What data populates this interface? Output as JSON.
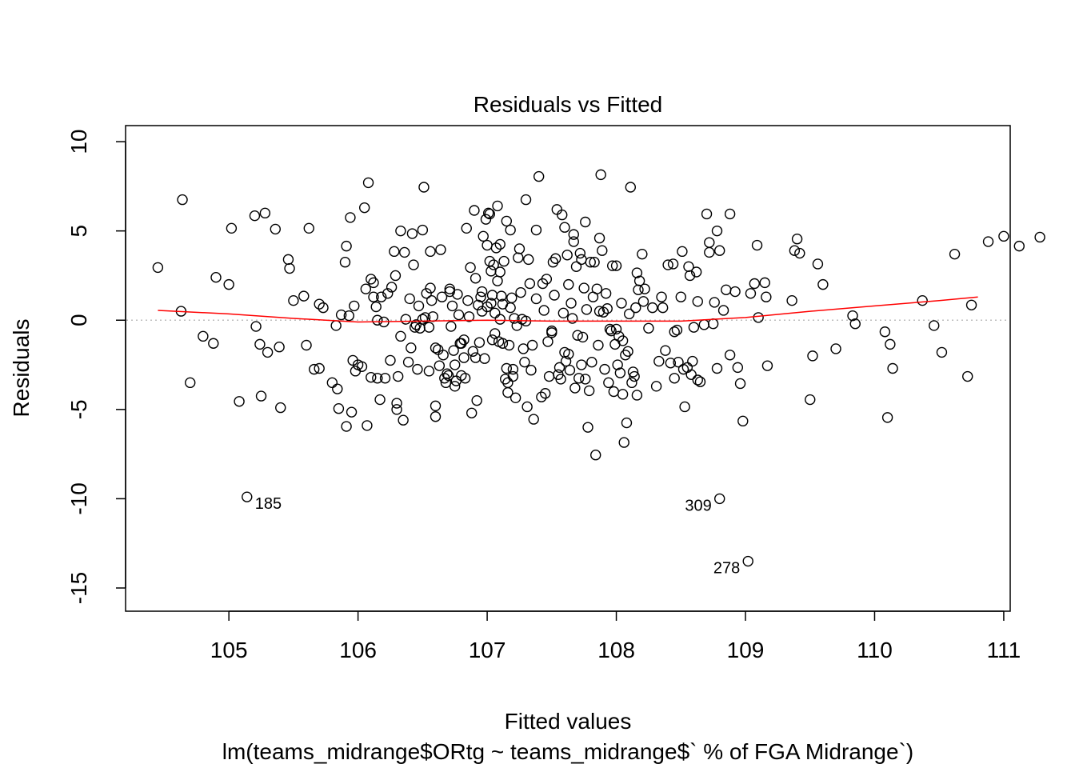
{
  "chart_data": {
    "type": "scatter",
    "title": "Residuals vs Fitted",
    "xlabel": "Fitted values",
    "ylabel": "Residuals",
    "subtitle": "lm(teams_midrange$ORtg ~ teams_midrange$` % of FGA Midrange`)",
    "xlim": [
      104.2,
      111.05
    ],
    "ylim": [
      -16.3,
      10.9
    ],
    "x_ticks": [
      105,
      106,
      107,
      108,
      109,
      110,
      111
    ],
    "x_tick_labels": [
      "105",
      "106",
      "107",
      "108",
      "109",
      "110",
      "111"
    ],
    "y_ticks": [
      -15,
      -10,
      -5,
      0,
      5,
      10
    ],
    "y_tick_labels": [
      "-15",
      "-10",
      "-5",
      "0",
      "5",
      "10"
    ],
    "grid": false,
    "reference_line": {
      "y": 0,
      "style": "dotted",
      "color": "#bebebe"
    },
    "point_color": "#000000",
    "smooth_color": "#ff0000",
    "smooth": {
      "x": [
        104.45,
        105.0,
        105.5,
        106.0,
        106.5,
        107.0,
        107.5,
        108.0,
        108.5,
        109.0,
        109.5,
        110.0,
        110.5,
        110.8
      ],
      "y": [
        0.55,
        0.35,
        0.1,
        -0.1,
        -0.05,
        0.0,
        -0.05,
        -0.05,
        -0.05,
        0.15,
        0.5,
        0.8,
        1.1,
        1.3
      ]
    },
    "labeled_points": [
      {
        "x": 105.14,
        "y": -9.9,
        "label": "185",
        "side": "right"
      },
      {
        "x": 108.8,
        "y": -10.0,
        "label": "309",
        "side": "left"
      },
      {
        "x": 109.02,
        "y": -13.5,
        "label": "278",
        "side": "left"
      }
    ],
    "points": [
      [
        104.45,
        2.95
      ],
      [
        104.63,
        0.5
      ],
      [
        104.64,
        6.75
      ],
      [
        104.7,
        -3.5
      ],
      [
        104.8,
        -0.9
      ],
      [
        104.88,
        -1.3
      ],
      [
        104.9,
        2.4
      ],
      [
        105.0,
        2.0
      ],
      [
        105.02,
        5.15
      ],
      [
        105.08,
        -4.55
      ],
      [
        105.2,
        5.85
      ],
      [
        105.21,
        -0.35
      ],
      [
        105.24,
        -1.35
      ],
      [
        105.25,
        -4.25
      ],
      [
        105.28,
        6.0
      ],
      [
        105.3,
        -1.8
      ],
      [
        105.36,
        5.1
      ],
      [
        105.39,
        -1.5
      ],
      [
        105.4,
        -4.9
      ],
      [
        105.46,
        3.4
      ],
      [
        105.47,
        2.9
      ],
      [
        105.5,
        1.1
      ],
      [
        105.58,
        1.35
      ],
      [
        105.6,
        -1.4
      ],
      [
        105.62,
        5.15
      ],
      [
        105.66,
        -2.75
      ],
      [
        105.7,
        -2.7
      ],
      [
        105.7,
        0.9
      ],
      [
        105.73,
        0.7
      ],
      [
        105.8,
        -3.5
      ],
      [
        105.83,
        -0.3
      ],
      [
        105.84,
        -3.85
      ],
      [
        105.85,
        -4.95
      ],
      [
        105.87,
        0.3
      ],
      [
        105.9,
        3.25
      ],
      [
        105.91,
        4.15
      ],
      [
        105.91,
        -5.95
      ],
      [
        105.93,
        0.25
      ],
      [
        105.94,
        5.75
      ],
      [
        105.95,
        -5.15
      ],
      [
        105.96,
        -2.25
      ],
      [
        105.97,
        0.8
      ],
      [
        105.98,
        -2.85
      ],
      [
        106.0,
        -2.5
      ],
      [
        106.03,
        -2.6
      ],
      [
        106.05,
        6.3
      ],
      [
        106.06,
        1.75
      ],
      [
        106.07,
        -5.9
      ],
      [
        106.08,
        7.7
      ],
      [
        106.1,
        2.3
      ],
      [
        106.1,
        -3.2
      ],
      [
        106.12,
        2.1
      ],
      [
        106.12,
        1.3
      ],
      [
        106.14,
        0.75
      ],
      [
        106.15,
        0.0
      ],
      [
        106.15,
        -3.25
      ],
      [
        106.17,
        -4.45
      ],
      [
        106.18,
        1.3
      ],
      [
        106.2,
        -0.1
      ],
      [
        106.21,
        -3.25
      ],
      [
        106.23,
        1.5
      ],
      [
        106.25,
        -2.25
      ],
      [
        106.26,
        1.85
      ],
      [
        106.28,
        3.85
      ],
      [
        106.29,
        2.5
      ],
      [
        106.3,
        -4.65
      ],
      [
        106.3,
        -5.0
      ],
      [
        106.31,
        -3.15
      ],
      [
        106.33,
        5.0
      ],
      [
        106.33,
        -0.9
      ],
      [
        106.35,
        -5.6
      ],
      [
        106.36,
        3.8
      ],
      [
        106.37,
        0.05
      ],
      [
        106.39,
        -2.35
      ],
      [
        106.4,
        1.2
      ],
      [
        106.41,
        -1.55
      ],
      [
        106.42,
        4.85
      ],
      [
        106.43,
        3.1
      ],
      [
        106.44,
        -0.4
      ],
      [
        106.45,
        -0.25
      ],
      [
        106.46,
        -2.75
      ],
      [
        106.47,
        0.8
      ],
      [
        106.48,
        -0.45
      ],
      [
        106.5,
        0.05
      ],
      [
        106.5,
        5.05
      ],
      [
        106.51,
        7.45
      ],
      [
        106.52,
        0.15
      ],
      [
        106.53,
        1.5
      ],
      [
        106.55,
        -2.85
      ],
      [
        106.55,
        -0.4
      ],
      [
        106.56,
        3.85
      ],
      [
        106.56,
        1.8
      ],
      [
        106.57,
        1.1
      ],
      [
        106.58,
        0.2
      ],
      [
        106.6,
        -1.55
      ],
      [
        106.6,
        -4.8
      ],
      [
        106.6,
        -5.4
      ],
      [
        106.62,
        -1.65
      ],
      [
        106.63,
        -2.55
      ],
      [
        106.64,
        3.95
      ],
      [
        106.65,
        1.3
      ],
      [
        106.66,
        -1.95
      ],
      [
        106.67,
        -3.25
      ],
      [
        106.68,
        -3.5
      ],
      [
        106.69,
        -3.0
      ],
      [
        106.7,
        -3.1
      ],
      [
        106.71,
        1.6
      ],
      [
        106.71,
        1.75
      ],
      [
        106.72,
        -0.35
      ],
      [
        106.73,
        0.8
      ],
      [
        106.74,
        -1.7
      ],
      [
        106.75,
        -2.5
      ],
      [
        106.75,
        -3.7
      ],
      [
        106.76,
        -3.4
      ],
      [
        106.77,
        1.45
      ],
      [
        106.78,
        0.3
      ],
      [
        106.79,
        -1.3
      ],
      [
        106.8,
        -1.3
      ],
      [
        106.8,
        -3.1
      ],
      [
        106.82,
        -2.1
      ],
      [
        106.82,
        -1.1
      ],
      [
        106.83,
        -3.25
      ],
      [
        106.84,
        5.15
      ],
      [
        106.85,
        1.1
      ],
      [
        106.86,
        0.2
      ],
      [
        106.87,
        2.95
      ],
      [
        106.88,
        -5.2
      ],
      [
        106.89,
        -1.75
      ],
      [
        106.9,
        6.15
      ],
      [
        106.91,
        2.35
      ],
      [
        106.91,
        -2.1
      ],
      [
        106.92,
        -4.5
      ],
      [
        106.93,
        0.85
      ],
      [
        106.94,
        -1.25
      ],
      [
        106.95,
        1.3
      ],
      [
        106.96,
        0.5
      ],
      [
        106.96,
        1.6
      ],
      [
        106.97,
        4.7
      ],
      [
        106.98,
        -2.15
      ],
      [
        106.99,
        5.65
      ],
      [
        107.0,
        4.2
      ],
      [
        107.0,
        0.75
      ],
      [
        107.01,
        6.0
      ],
      [
        107.02,
        5.95
      ],
      [
        107.02,
        3.3
      ],
      [
        107.03,
        0.95
      ],
      [
        107.03,
        2.75
      ],
      [
        107.04,
        1.4
      ],
      [
        107.04,
        -1.1
      ],
      [
        107.05,
        3.1
      ],
      [
        107.06,
        0.4
      ],
      [
        107.06,
        -0.75
      ],
      [
        107.07,
        4.05
      ],
      [
        107.08,
        2.2
      ],
      [
        107.08,
        6.4
      ],
      [
        107.09,
        -1.2
      ],
      [
        107.1,
        2.7
      ],
      [
        107.1,
        4.25
      ],
      [
        107.1,
        0.05
      ],
      [
        107.11,
        1.35
      ],
      [
        107.12,
        0.9
      ],
      [
        107.12,
        -1.3
      ],
      [
        107.13,
        3.3
      ],
      [
        107.14,
        -3.3
      ],
      [
        107.15,
        5.55
      ],
      [
        107.15,
        -2.7
      ],
      [
        107.16,
        -3.5
      ],
      [
        107.16,
        -4.05
      ],
      [
        107.17,
        -1.4
      ],
      [
        107.18,
        0.7
      ],
      [
        107.18,
        5.05
      ],
      [
        107.19,
        1.25
      ],
      [
        107.2,
        -2.75
      ],
      [
        107.2,
        -3.15
      ],
      [
        107.21,
        0.1
      ],
      [
        107.22,
        -4.35
      ],
      [
        107.23,
        -0.3
      ],
      [
        107.24,
        3.5
      ],
      [
        107.25,
        4.0
      ],
      [
        107.26,
        1.55
      ],
      [
        107.27,
        0.05
      ],
      [
        107.28,
        -1.6
      ],
      [
        107.29,
        -2.35
      ],
      [
        107.3,
        6.75
      ],
      [
        107.3,
        -0.05
      ],
      [
        107.31,
        -4.85
      ],
      [
        107.32,
        3.4
      ],
      [
        107.33,
        2.05
      ],
      [
        107.34,
        -2.8
      ],
      [
        107.35,
        -1.4
      ],
      [
        107.36,
        -5.55
      ],
      [
        107.38,
        1.2
      ],
      [
        107.38,
        5.05
      ],
      [
        107.4,
        8.05
      ],
      [
        107.42,
        -4.3
      ],
      [
        107.43,
        2.05
      ],
      [
        107.44,
        0.55
      ],
      [
        107.45,
        -4.1
      ],
      [
        107.46,
        2.3
      ],
      [
        107.47,
        -1.2
      ],
      [
        107.48,
        -3.15
      ],
      [
        107.5,
        -0.6
      ],
      [
        107.5,
        -0.7
      ],
      [
        107.51,
        3.25
      ],
      [
        107.52,
        1.4
      ],
      [
        107.53,
        3.45
      ],
      [
        107.54,
        6.2
      ],
      [
        107.55,
        -3.05
      ],
      [
        107.56,
        -2.65
      ],
      [
        107.57,
        -3.3
      ],
      [
        107.58,
        5.9
      ],
      [
        107.59,
        0.4
      ],
      [
        107.6,
        -1.8
      ],
      [
        107.6,
        5.2
      ],
      [
        107.61,
        -2.3
      ],
      [
        107.62,
        3.65
      ],
      [
        107.63,
        2.0
      ],
      [
        107.63,
        -1.9
      ],
      [
        107.64,
        -2.8
      ],
      [
        107.65,
        0.95
      ],
      [
        107.66,
        0.1
      ],
      [
        107.67,
        4.8
      ],
      [
        107.67,
        4.4
      ],
      [
        107.68,
        -3.8
      ],
      [
        107.69,
        3.0
      ],
      [
        107.7,
        -0.85
      ],
      [
        107.71,
        -3.25
      ],
      [
        107.72,
        3.75
      ],
      [
        107.73,
        -2.5
      ],
      [
        107.73,
        3.4
      ],
      [
        107.74,
        -0.95
      ],
      [
        107.75,
        1.8
      ],
      [
        107.76,
        5.5
      ],
      [
        107.76,
        -3.3
      ],
      [
        107.77,
        0.6
      ],
      [
        107.78,
        -6.0
      ],
      [
        107.79,
        -3.95
      ],
      [
        107.8,
        3.25
      ],
      [
        107.81,
        -2.35
      ],
      [
        107.82,
        1.3
      ],
      [
        107.83,
        3.25
      ],
      [
        107.84,
        -7.55
      ],
      [
        107.85,
        1.75
      ],
      [
        107.86,
        -1.4
      ],
      [
        107.87,
        4.6
      ],
      [
        107.87,
        0.5
      ],
      [
        107.88,
        8.15
      ],
      [
        107.89,
        3.9
      ],
      [
        107.9,
        0.45
      ],
      [
        107.91,
        -2.75
      ],
      [
        107.92,
        1.5
      ],
      [
        107.93,
        0.65
      ],
      [
        107.94,
        -3.5
      ],
      [
        107.95,
        -0.5
      ],
      [
        107.96,
        -0.6
      ],
      [
        107.97,
        3.05
      ],
      [
        107.98,
        -4.0
      ],
      [
        107.99,
        -1.35
      ],
      [
        108.0,
        -0.5
      ],
      [
        108.0,
        3.05
      ],
      [
        108.01,
        -2.5
      ],
      [
        108.02,
        -0.9
      ],
      [
        108.03,
        -2.95
      ],
      [
        108.04,
        0.95
      ],
      [
        108.05,
        -1.15
      ],
      [
        108.05,
        -4.15
      ],
      [
        108.06,
        -6.85
      ],
      [
        108.07,
        -1.95
      ],
      [
        108.08,
        -5.75
      ],
      [
        108.09,
        -1.75
      ],
      [
        108.1,
        0.35
      ],
      [
        108.11,
        7.45
      ],
      [
        108.12,
        -3.5
      ],
      [
        108.13,
        -2.9
      ],
      [
        108.14,
        -3.15
      ],
      [
        108.15,
        0.7
      ],
      [
        108.16,
        2.65
      ],
      [
        108.16,
        -4.2
      ],
      [
        108.17,
        1.7
      ],
      [
        108.18,
        2.2
      ],
      [
        108.2,
        3.7
      ],
      [
        108.21,
        1.05
      ],
      [
        108.22,
        1.75
      ],
      [
        108.25,
        -0.45
      ],
      [
        108.28,
        0.7
      ],
      [
        108.31,
        -3.7
      ],
      [
        108.33,
        -2.3
      ],
      [
        108.35,
        1.3
      ],
      [
        108.36,
        0.7
      ],
      [
        108.38,
        -1.7
      ],
      [
        108.4,
        3.1
      ],
      [
        108.42,
        -2.4
      ],
      [
        108.44,
        3.15
      ],
      [
        108.45,
        -0.65
      ],
      [
        108.45,
        -3.25
      ],
      [
        108.47,
        -0.55
      ],
      [
        108.48,
        -2.35
      ],
      [
        108.5,
        1.3
      ],
      [
        108.51,
        3.85
      ],
      [
        108.52,
        -2.75
      ],
      [
        108.53,
        -4.85
      ],
      [
        108.55,
        -2.65
      ],
      [
        108.56,
        3.0
      ],
      [
        108.57,
        2.5
      ],
      [
        108.58,
        -3.05
      ],
      [
        108.59,
        -2.3
      ],
      [
        108.6,
        -0.4
      ],
      [
        108.62,
        2.7
      ],
      [
        108.63,
        -3.35
      ],
      [
        108.63,
        1.05
      ],
      [
        108.65,
        -3.45
      ],
      [
        108.68,
        -0.25
      ],
      [
        108.7,
        5.95
      ],
      [
        108.72,
        3.8
      ],
      [
        108.72,
        4.35
      ],
      [
        108.75,
        -0.2
      ],
      [
        108.76,
        1.0
      ],
      [
        108.78,
        5.0
      ],
      [
        108.78,
        -2.7
      ],
      [
        108.8,
        3.9
      ],
      [
        108.83,
        0.55
      ],
      [
        108.85,
        1.7
      ],
      [
        108.88,
        5.95
      ],
      [
        108.88,
        -1.95
      ],
      [
        108.92,
        1.6
      ],
      [
        108.94,
        -2.65
      ],
      [
        108.96,
        -3.55
      ],
      [
        108.98,
        -5.65
      ],
      [
        109.04,
        1.5
      ],
      [
        109.07,
        2.05
      ],
      [
        109.09,
        4.2
      ],
      [
        109.1,
        0.15
      ],
      [
        109.15,
        2.1
      ],
      [
        109.16,
        1.3
      ],
      [
        109.17,
        -2.55
      ],
      [
        109.36,
        1.1
      ],
      [
        109.38,
        3.9
      ],
      [
        109.4,
        4.55
      ],
      [
        109.42,
        3.75
      ],
      [
        109.5,
        -4.45
      ],
      [
        109.52,
        -2.0
      ],
      [
        109.56,
        3.15
      ],
      [
        109.6,
        2.0
      ],
      [
        109.7,
        -1.6
      ],
      [
        109.83,
        0.25
      ],
      [
        109.85,
        -0.2
      ],
      [
        110.08,
        -0.65
      ],
      [
        110.1,
        -5.45
      ],
      [
        110.12,
        -1.35
      ],
      [
        110.14,
        -2.7
      ],
      [
        110.37,
        1.1
      ],
      [
        110.46,
        -0.3
      ],
      [
        110.52,
        -1.8
      ],
      [
        110.62,
        3.7
      ],
      [
        110.72,
        -3.15
      ],
      [
        110.75,
        0.85
      ],
      [
        110.88,
        4.4
      ],
      [
        111.0,
        4.7
      ],
      [
        111.12,
        4.15
      ],
      [
        111.28,
        4.65
      ]
    ]
  }
}
